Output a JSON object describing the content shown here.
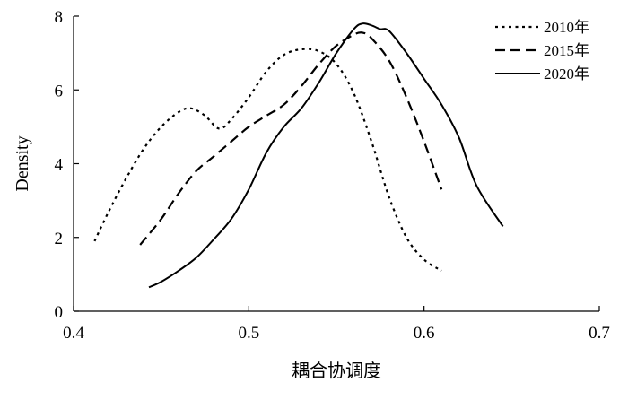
{
  "chart_data": {
    "type": "line",
    "title": "",
    "xlabel": "耦合协调度",
    "ylabel": "Density",
    "xlim": [
      0.4,
      0.7
    ],
    "ylim": [
      0,
      8
    ],
    "xticks": [
      "0.4",
      "0.5",
      "0.6",
      "0.7"
    ],
    "yticks": [
      "0",
      "2",
      "4",
      "6",
      "8"
    ],
    "grid": false,
    "legend_position": "top-right",
    "series": [
      {
        "name": "2010年",
        "style": "dotted",
        "x": [
          0.412,
          0.42,
          0.43,
          0.44,
          0.45,
          0.46,
          0.467,
          0.475,
          0.483,
          0.49,
          0.5,
          0.51,
          0.52,
          0.53,
          0.54,
          0.55,
          0.56,
          0.57,
          0.58,
          0.59,
          0.6,
          0.61
        ],
        "y": [
          1.9,
          2.7,
          3.6,
          4.4,
          5.0,
          5.4,
          5.5,
          5.3,
          4.95,
          5.2,
          5.8,
          6.5,
          6.95,
          7.1,
          7.05,
          6.7,
          5.9,
          4.6,
          3.1,
          2.0,
          1.4,
          1.1
        ]
      },
      {
        "name": "2015年",
        "style": "dashed",
        "x": [
          0.438,
          0.45,
          0.46,
          0.47,
          0.48,
          0.49,
          0.5,
          0.51,
          0.52,
          0.53,
          0.54,
          0.55,
          0.56,
          0.565,
          0.57,
          0.58,
          0.59,
          0.6,
          0.61
        ],
        "y": [
          1.8,
          2.5,
          3.2,
          3.8,
          4.2,
          4.6,
          5.0,
          5.3,
          5.6,
          6.1,
          6.7,
          7.2,
          7.5,
          7.55,
          7.4,
          6.8,
          5.8,
          4.6,
          3.3
        ]
      },
      {
        "name": "2020年",
        "style": "solid",
        "x": [
          0.443,
          0.45,
          0.46,
          0.47,
          0.48,
          0.49,
          0.5,
          0.51,
          0.52,
          0.53,
          0.54,
          0.55,
          0.56,
          0.565,
          0.57,
          0.575,
          0.58,
          0.59,
          0.6,
          0.61,
          0.62,
          0.63,
          0.645
        ],
        "y": [
          0.65,
          0.8,
          1.1,
          1.45,
          1.95,
          2.5,
          3.3,
          4.3,
          5.0,
          5.5,
          6.2,
          7.0,
          7.65,
          7.8,
          7.75,
          7.65,
          7.6,
          7.0,
          6.3,
          5.6,
          4.7,
          3.4,
          2.3
        ]
      }
    ]
  }
}
